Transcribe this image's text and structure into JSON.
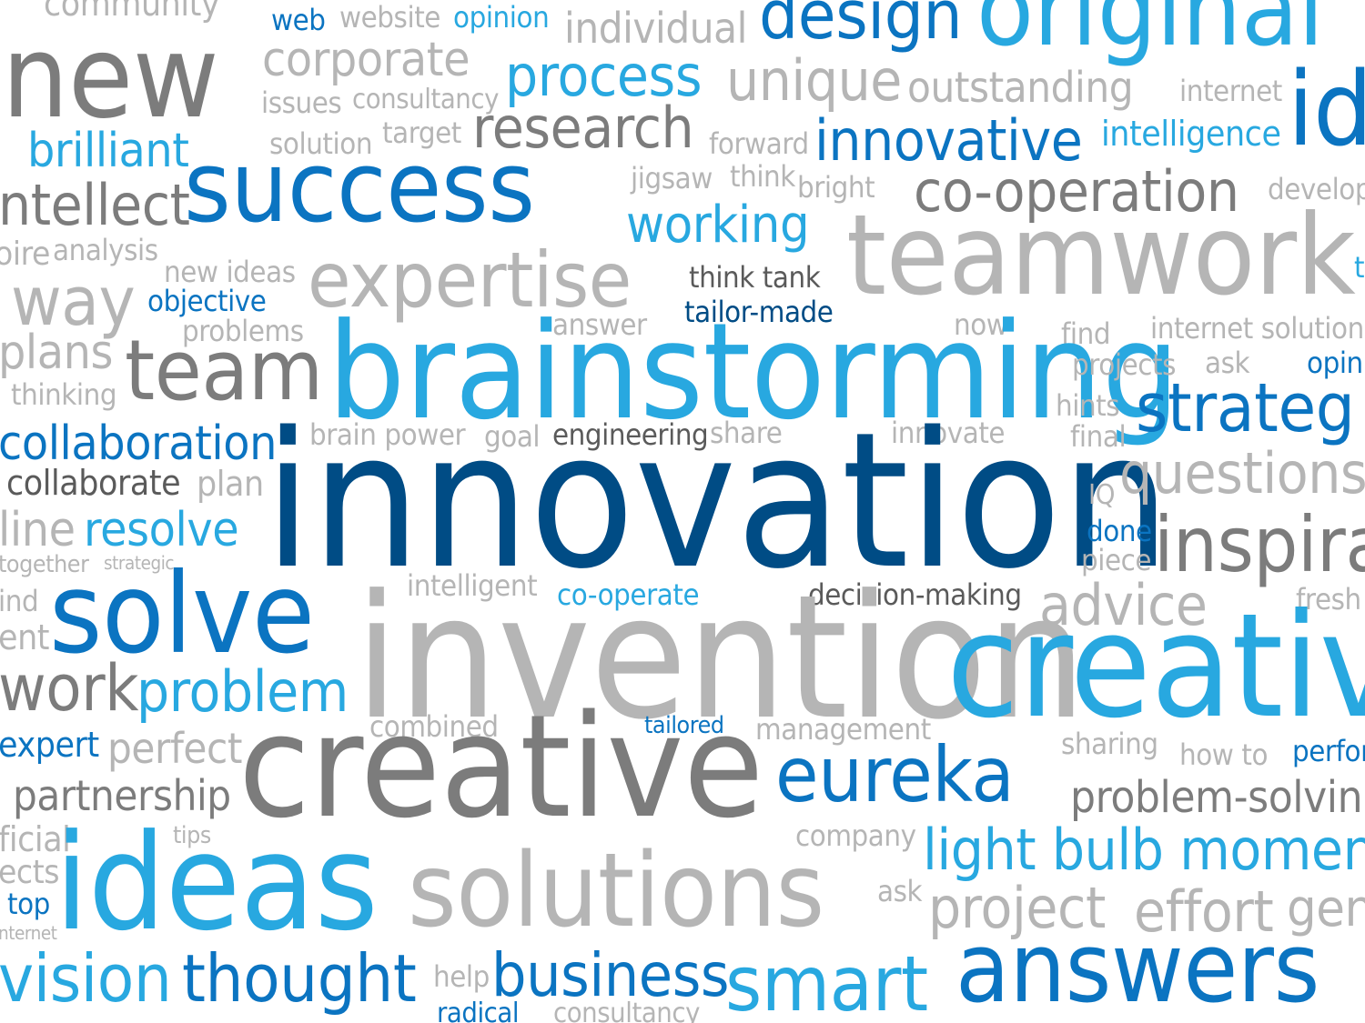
{
  "words": [
    {
      "id": "community",
      "text": "community",
      "tone": "light"
    },
    {
      "id": "web",
      "text": "web",
      "tone": "blue"
    },
    {
      "id": "website",
      "text": "website",
      "tone": "light"
    },
    {
      "id": "opinion",
      "text": "opinion",
      "tone": "sky"
    },
    {
      "id": "individual",
      "text": "individual",
      "tone": "light"
    },
    {
      "id": "design",
      "text": "design",
      "tone": "blue"
    },
    {
      "id": "original",
      "text": "original",
      "tone": "sky"
    },
    {
      "id": "new",
      "text": "new",
      "tone": "mid"
    },
    {
      "id": "corporate",
      "text": "corporate",
      "tone": "light"
    },
    {
      "id": "process",
      "text": "process",
      "tone": "sky"
    },
    {
      "id": "unique",
      "text": "unique",
      "tone": "light"
    },
    {
      "id": "outstanding",
      "text": "outstanding",
      "tone": "light"
    },
    {
      "id": "internet-top",
      "text": "internet",
      "tone": "light"
    },
    {
      "id": "id-partial",
      "text": "id",
      "tone": "blue"
    },
    {
      "id": "issues",
      "text": "issues",
      "tone": "light"
    },
    {
      "id": "consultancy-top",
      "text": "consultancy",
      "tone": "light"
    },
    {
      "id": "research",
      "text": "research",
      "tone": "mid"
    },
    {
      "id": "target",
      "text": "target",
      "tone": "light"
    },
    {
      "id": "forward",
      "text": "forward",
      "tone": "light"
    },
    {
      "id": "innovative",
      "text": "innovative",
      "tone": "blue"
    },
    {
      "id": "intelligence",
      "text": "intelligence",
      "tone": "sky"
    },
    {
      "id": "brilliant",
      "text": "brilliant",
      "tone": "sky"
    },
    {
      "id": "solution",
      "text": "solution",
      "tone": "light"
    },
    {
      "id": "success",
      "text": "success",
      "tone": "blue"
    },
    {
      "id": "jigsaw",
      "text": "jigsaw",
      "tone": "light"
    },
    {
      "id": "think",
      "text": "think",
      "tone": "light"
    },
    {
      "id": "bright",
      "text": "bright",
      "tone": "light"
    },
    {
      "id": "co-operation",
      "text": "co-operation",
      "tone": "mid"
    },
    {
      "id": "develop-partial",
      "text": "develop",
      "tone": "light"
    },
    {
      "id": "intellect",
      "text": "ntellect",
      "tone": "mid"
    },
    {
      "id": "working",
      "text": "working",
      "tone": "sky"
    },
    {
      "id": "teamwork",
      "text": "teamwork",
      "tone": "light"
    },
    {
      "id": "aspire-partial",
      "text": "oire",
      "tone": "light"
    },
    {
      "id": "analysis",
      "text": "analysis",
      "tone": "light"
    },
    {
      "id": "new-ideas",
      "text": "new ideas",
      "tone": "light"
    },
    {
      "id": "expertise",
      "text": "expertise",
      "tone": "light"
    },
    {
      "id": "think-tank",
      "text": "think tank",
      "tone": "dark"
    },
    {
      "id": "t-edge",
      "text": "t",
      "tone": "sky"
    },
    {
      "id": "way",
      "text": "way",
      "tone": "light"
    },
    {
      "id": "objective",
      "text": "objective",
      "tone": "blue"
    },
    {
      "id": "tailor-made",
      "text": "tailor-made",
      "tone": "navy"
    },
    {
      "id": "problems",
      "text": "problems",
      "tone": "light"
    },
    {
      "id": "answer",
      "text": "answer",
      "tone": "light"
    },
    {
      "id": "now",
      "text": "now",
      "tone": "light"
    },
    {
      "id": "find",
      "text": "find",
      "tone": "light"
    },
    {
      "id": "internet-solutions",
      "text": "internet solutions",
      "tone": "light"
    },
    {
      "id": "plans",
      "text": "plans",
      "tone": "light"
    },
    {
      "id": "team",
      "text": "team",
      "tone": "mid"
    },
    {
      "id": "brainstorming",
      "text": "brainstorming",
      "tone": "sky"
    },
    {
      "id": "projects",
      "text": "projects",
      "tone": "light"
    },
    {
      "id": "ask-top",
      "text": "ask",
      "tone": "light"
    },
    {
      "id": "opinion-partial",
      "text": "opini",
      "tone": "blue"
    },
    {
      "id": "thinking",
      "text": "thinking",
      "tone": "light"
    },
    {
      "id": "hints",
      "text": "hints",
      "tone": "light"
    },
    {
      "id": "strategy-partial",
      "text": "strateg",
      "tone": "blue"
    },
    {
      "id": "collaboration",
      "text": "collaboration",
      "tone": "blue"
    },
    {
      "id": "brain-power",
      "text": "brain power",
      "tone": "light"
    },
    {
      "id": "goal",
      "text": "goal",
      "tone": "light"
    },
    {
      "id": "engineering",
      "text": "engineering",
      "tone": "dark"
    },
    {
      "id": "share",
      "text": "share",
      "tone": "light"
    },
    {
      "id": "innovate",
      "text": "innovate",
      "tone": "light"
    },
    {
      "id": "final",
      "text": "final",
      "tone": "light"
    },
    {
      "id": "collaborate",
      "text": "collaborate",
      "tone": "dark"
    },
    {
      "id": "plan",
      "text": "plan",
      "tone": "light"
    },
    {
      "id": "innovation",
      "text": "innovation",
      "tone": "navy"
    },
    {
      "id": "iq",
      "text": "IQ",
      "tone": "light"
    },
    {
      "id": "questions",
      "text": "questions",
      "tone": "light"
    },
    {
      "id": "online-partial",
      "text": "line",
      "tone": "light"
    },
    {
      "id": "resolve",
      "text": "resolve",
      "tone": "sky"
    },
    {
      "id": "done",
      "text": "done",
      "tone": "blue"
    },
    {
      "id": "inspiration-partial",
      "text": "inspira",
      "tone": "mid"
    },
    {
      "id": "together",
      "text": "together",
      "tone": "light"
    },
    {
      "id": "strategic",
      "text": "strategic",
      "tone": "light"
    },
    {
      "id": "piece",
      "text": "piece",
      "tone": "light"
    },
    {
      "id": "mind-partial",
      "text": "ind",
      "tone": "light"
    },
    {
      "id": "solve",
      "text": "solve",
      "tone": "blue"
    },
    {
      "id": "intelligent",
      "text": "intelligent",
      "tone": "light"
    },
    {
      "id": "co-operate",
      "text": "co-operate",
      "tone": "sky"
    },
    {
      "id": "decision-making",
      "text": "decision-making",
      "tone": "dark"
    },
    {
      "id": "advice",
      "text": "advice",
      "tone": "light"
    },
    {
      "id": "fresh-partial",
      "text": "fresh",
      "tone": "light"
    },
    {
      "id": "ent-partial",
      "text": "ent",
      "tone": "light"
    },
    {
      "id": "invention",
      "text": "invention",
      "tone": "light"
    },
    {
      "id": "creative-right",
      "text": "creativ",
      "tone": "sky"
    },
    {
      "id": "work",
      "text": "work",
      "tone": "mid"
    },
    {
      "id": "problem",
      "text": "problem",
      "tone": "sky"
    },
    {
      "id": "combined",
      "text": "combined",
      "tone": "light"
    },
    {
      "id": "tailored",
      "text": "tailored",
      "tone": "blue"
    },
    {
      "id": "management",
      "text": "management",
      "tone": "light"
    },
    {
      "id": "sharing",
      "text": "sharing",
      "tone": "light"
    },
    {
      "id": "expert",
      "text": "expert",
      "tone": "blue"
    },
    {
      "id": "perfect",
      "text": "perfect",
      "tone": "light"
    },
    {
      "id": "creative-main",
      "text": "creative",
      "tone": "mid"
    },
    {
      "id": "eureka",
      "text": "eureka",
      "tone": "blue"
    },
    {
      "id": "how-to",
      "text": "how to",
      "tone": "light"
    },
    {
      "id": "performance-partial",
      "text": "perfor",
      "tone": "blue"
    },
    {
      "id": "partnership",
      "text": "partnership",
      "tone": "mid"
    },
    {
      "id": "problem-solving",
      "text": "problem-solvin",
      "tone": "mid"
    },
    {
      "id": "official-partial",
      "text": "ficial",
      "tone": "light"
    },
    {
      "id": "tips",
      "text": "tips",
      "tone": "light"
    },
    {
      "id": "company",
      "text": "company",
      "tone": "light"
    },
    {
      "id": "light-bulb-moment",
      "text": "light bulb momen",
      "tone": "sky"
    },
    {
      "id": "projects-partial",
      "text": "ects",
      "tone": "light"
    },
    {
      "id": "ideas",
      "text": "ideas",
      "tone": "sky"
    },
    {
      "id": "solutions",
      "text": "solutions",
      "tone": "light"
    },
    {
      "id": "ask-bottom",
      "text": "ask",
      "tone": "light"
    },
    {
      "id": "project",
      "text": "project",
      "tone": "light"
    },
    {
      "id": "effort",
      "text": "effort",
      "tone": "light"
    },
    {
      "id": "generate-partial",
      "text": "gen",
      "tone": "light"
    },
    {
      "id": "top",
      "text": "top",
      "tone": "blue"
    },
    {
      "id": "internet-bottom",
      "text": "nternet",
      "tone": "light"
    },
    {
      "id": "vision",
      "text": "vision",
      "tone": "sky"
    },
    {
      "id": "thought",
      "text": "thought",
      "tone": "blue"
    },
    {
      "id": "help",
      "text": "help",
      "tone": "light"
    },
    {
      "id": "business",
      "text": "business",
      "tone": "blue"
    },
    {
      "id": "smart",
      "text": "smart",
      "tone": "sky"
    },
    {
      "id": "answers",
      "text": "answers",
      "tone": "blue"
    },
    {
      "id": "radical",
      "text": "radical",
      "tone": "blue"
    },
    {
      "id": "consultancy-bottom",
      "text": "consultancy",
      "tone": "light"
    }
  ]
}
